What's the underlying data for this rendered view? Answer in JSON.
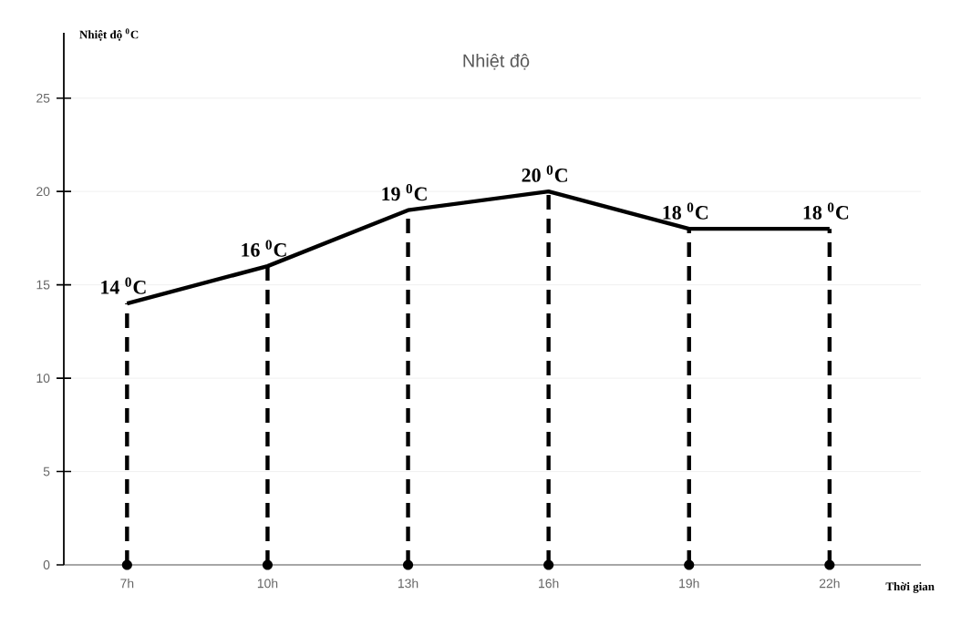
{
  "chart_data": {
    "type": "line",
    "title": "Nhiệt độ",
    "xlabel": "Thời gian",
    "ylabel": "Nhiệt độ $^{0}$C",
    "categories": [
      "7h",
      "10h",
      "13h",
      "16h",
      "19h",
      "22h"
    ],
    "series": [
      {
        "color": "#000000",
        "values": [
          14,
          16,
          19,
          20,
          18,
          18
        ],
        "value_labels": [
          "14 $^{0}$C",
          "16 $^{0}$C",
          "19 $^{0}$C",
          "20 $^{0}$C",
          "18 $^{0}$C",
          "18 $^{0}$C"
        ]
      }
    ],
    "ylim": [
      0,
      28.5
    ],
    "yticks": [
      0,
      5,
      10,
      15,
      20,
      25
    ],
    "grid": "y"
  }
}
